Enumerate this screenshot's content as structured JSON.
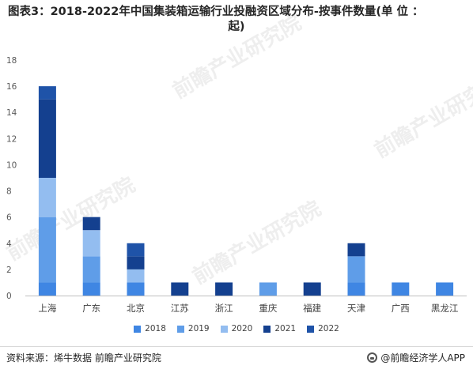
{
  "title_line1": "图表3：2018-2022年中国集装箱运输行业投融资区域分布-按事件数量(单 位 ：",
  "title_line2": "起)",
  "watermark_text": "前瞻产业研究院",
  "source_text": "资料来源：烯牛数据 前瞻产业研究院",
  "brand_text": "@前瞻经济学人APP",
  "chart_data": {
    "type": "bar",
    "stacked": true,
    "title": "图表3：2018-2022年中国集装箱运输行业投融资区域分布-按事件数量(单 位 ：起)",
    "xlabel": "",
    "ylabel": "",
    "ylim": [
      0,
      18
    ],
    "yticks": [
      0,
      2,
      4,
      6,
      8,
      10,
      12,
      14,
      16,
      18
    ],
    "grid": false,
    "legend_position": "bottom",
    "categories": [
      "上海",
      "广东",
      "北京",
      "江苏",
      "浙江",
      "重庆",
      "福建",
      "天津",
      "广西",
      "黑龙江"
    ],
    "series": [
      {
        "name": "2018",
        "color": "#3f86e3",
        "values": [
          1,
          1,
          1,
          0,
          0,
          0,
          0,
          1,
          1,
          1
        ]
      },
      {
        "name": "2019",
        "color": "#5f9de8",
        "values": [
          5,
          2,
          0,
          0,
          0,
          1,
          0,
          2,
          0,
          0
        ]
      },
      {
        "name": "2020",
        "color": "#93bdf0",
        "values": [
          3,
          2,
          1,
          0,
          0,
          0,
          0,
          0,
          0,
          0
        ]
      },
      {
        "name": "2021",
        "color": "#14408f",
        "values": [
          6,
          1,
          1,
          1,
          1,
          0,
          1,
          1,
          0,
          0
        ]
      },
      {
        "name": "2022",
        "color": "#1f53a8",
        "values": [
          1,
          0,
          1,
          0,
          0,
          0,
          0,
          0,
          0,
          0
        ]
      }
    ]
  }
}
